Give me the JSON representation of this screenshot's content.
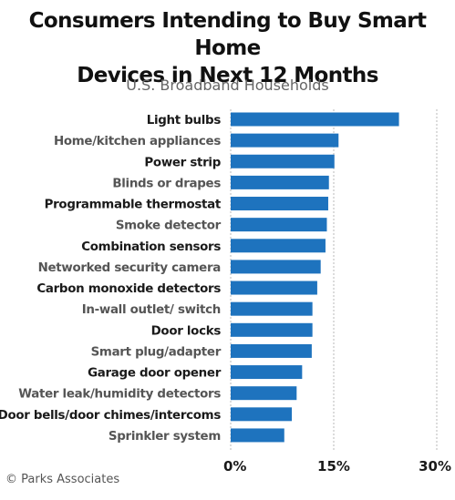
{
  "chart_data": {
    "type": "bar",
    "orientation": "horizontal",
    "title": "Consumers Intending to Buy Smart Home Devices in Next 12 Months",
    "subtitle": "U.S. Broadband Households",
    "categories": [
      "Light bulbs",
      "Home/kitchen appliances",
      "Power strip",
      "Blinds or drapes",
      "Programmable thermostat",
      "Smoke detector",
      "Combination sensors",
      "Networked security camera",
      "Carbon monoxide detectors",
      "In-wall outlet/ switch",
      "Door locks",
      "Smart plug/adapter",
      "Garage door opener",
      "Water leak/humidity detectors",
      "Door bells/door chimes/intercoms",
      "Sprinkler system"
    ],
    "values": [
      24.5,
      15.7,
      15.1,
      14.3,
      14.2,
      14.0,
      13.8,
      13.1,
      12.6,
      11.9,
      11.9,
      11.8,
      10.4,
      9.6,
      8.9,
      7.8
    ],
    "xlim": [
      0,
      30
    ],
    "ticks": [
      {
        "value": 0,
        "label": "0%"
      },
      {
        "value": 15,
        "label": "15%"
      },
      {
        "value": 30,
        "label": "30%"
      }
    ],
    "xlabel": "",
    "ylabel": "",
    "grid": true,
    "bar_color": "#1e73be"
  },
  "footer": {
    "copyright": "© Parks Associates"
  }
}
